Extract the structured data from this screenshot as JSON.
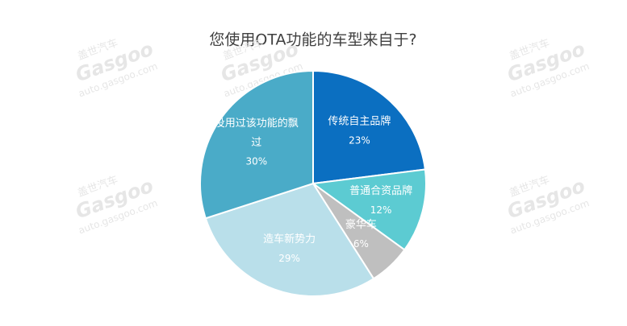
{
  "chart_data": {
    "type": "pie",
    "title": "您使用OTA功能的车型来自于?",
    "categories": [
      "传统自主品牌",
      "普通合资品牌",
      "豪华车",
      "造车新势力",
      "没用过该功能的飘过"
    ],
    "values": [
      23,
      12,
      6,
      29,
      30
    ],
    "value_labels": [
      "23%",
      "12%",
      "6%",
      "29%",
      "30%"
    ],
    "colors": [
      "#0b6fc1",
      "#5ccbd2",
      "#bfbfbf",
      "#b9dfea",
      "#4aabc8"
    ]
  },
  "watermark": {
    "brand": "盖世汽车",
    "logo": "Gasgoo",
    "url": "auto.gasgoo.com"
  }
}
